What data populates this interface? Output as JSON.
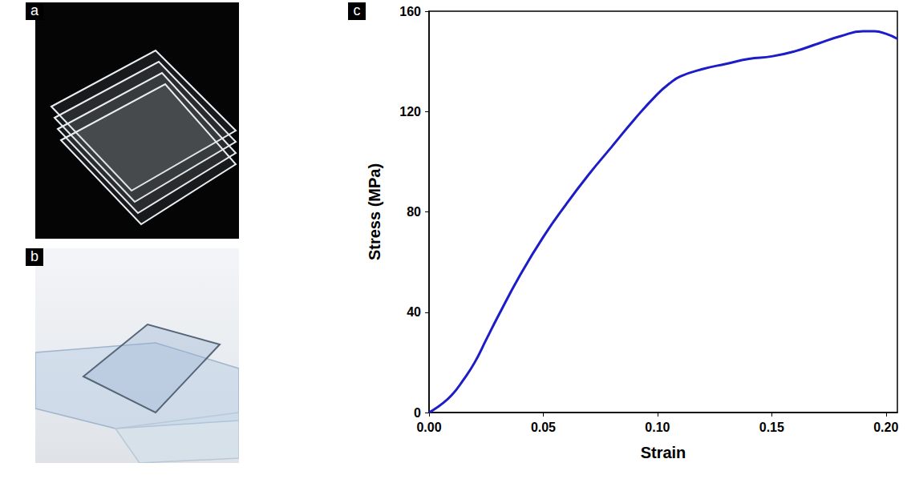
{
  "panel_labels": [
    "a",
    "b",
    "c"
  ],
  "chart_data": {
    "type": "line",
    "color": "#1c1cc8",
    "x_label": "Strain",
    "y_label": "Stress (MPa)",
    "x": [
      0,
      0.005,
      0.01,
      0.015,
      0.02,
      0.025,
      0.03,
      0.04,
      0.05,
      0.06,
      0.07,
      0.08,
      0.09,
      0.1,
      0.105,
      0.11,
      0.12,
      0.13,
      0.14,
      0.15,
      0.16,
      0.17,
      0.18,
      0.19,
      0.195,
      0.2,
      0.205
    ],
    "values": [
      0,
      3,
      7,
      13,
      20,
      29,
      38,
      55,
      70,
      83,
      95,
      106,
      117,
      127,
      131,
      134,
      137,
      139,
      141,
      142,
      144,
      147,
      150,
      152,
      152,
      151,
      149
    ],
    "xlim": [
      0,
      0.205
    ],
    "xticks": [
      {
        "value": 0,
        "label": "0.00"
      },
      0.05,
      {
        "value": 0.1,
        "label": "0.10"
      },
      0.15,
      {
        "value": 0.2,
        "label": "0.20"
      }
    ],
    "ylim": [
      0,
      160
    ],
    "yticks": [
      0,
      40,
      80,
      120,
      160
    ],
    "grid": false
  }
}
